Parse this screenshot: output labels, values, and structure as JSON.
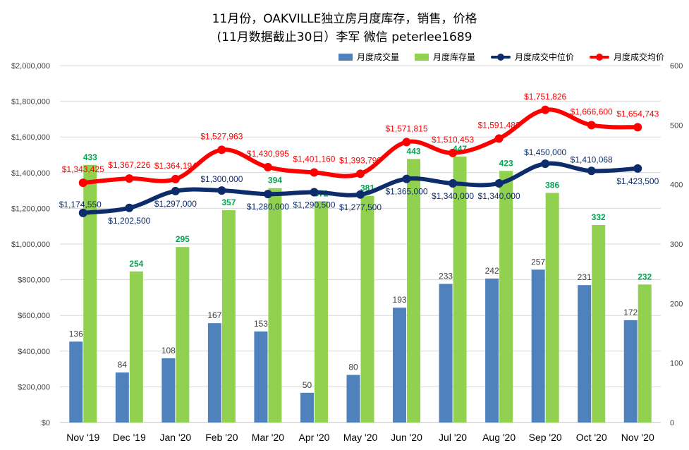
{
  "chart_data": {
    "type": "bar-line-combo",
    "title_line1": "11月份，OAKVILLE独立房月度库存，销售，价格",
    "title_line2": "(11月数据截止30日）李军 微信 peterlee1689",
    "categories": [
      "Nov '19",
      "Dec '19",
      "Jan '20",
      "Feb '20",
      "Mar '20",
      "Apr '20",
      "May '20",
      "Jun '20",
      "Jul '20",
      "Aug '20",
      "Sep '20",
      "Oct '20",
      "Nov '20"
    ],
    "left_axis": {
      "min": 0,
      "max": 2000000,
      "step": 200000,
      "tick_labels": [
        "$0",
        "$200,000",
        "$400,000",
        "$600,000",
        "$800,000",
        "$1,000,000",
        "$1,200,000",
        "$1,400,000",
        "$1,600,000",
        "$1,800,000",
        "$2,000,000"
      ]
    },
    "right_axis": {
      "min": 0,
      "max": 600,
      "step": 100,
      "tick_labels": [
        "0",
        "100",
        "200",
        "300",
        "400",
        "500",
        "600"
      ]
    },
    "grid": true,
    "legend_position": "top-right",
    "series": [
      {
        "name": "月度成交量",
        "kind": "bar",
        "axis": "right",
        "color": "#4f81bd",
        "values": [
          136,
          84,
          108,
          167,
          153,
          50,
          80,
          193,
          233,
          242,
          257,
          231,
          172
        ],
        "labels": [
          "136",
          "84",
          "108",
          "167",
          "153",
          "50",
          "80",
          "193",
          "233",
          "242",
          "257",
          "231",
          "172"
        ]
      },
      {
        "name": "月度库存量",
        "kind": "bar",
        "axis": "right",
        "color": "#92d050",
        "label_color": "#00a550",
        "values": [
          433,
          254,
          295,
          357,
          394,
          372,
          381,
          443,
          447,
          423,
          386,
          332,
          232
        ],
        "labels": [
          "433",
          "254",
          "295",
          "357",
          "394",
          "372",
          "381",
          "443",
          "447",
          "423",
          "386",
          "332",
          "232"
        ]
      },
      {
        "name": "月度成交中位价",
        "kind": "line",
        "axis": "left",
        "color": "#0d2c6c",
        "values": [
          1174550,
          1202500,
          1297000,
          1300000,
          1280000,
          1290500,
          1277500,
          1365000,
          1340000,
          1340000,
          1450000,
          1410068,
          1423500
        ],
        "labels": [
          "$1,174,550",
          "$1,202,500",
          "$1,297,000",
          "$1,300,000",
          "$1,280,000",
          "$1,290,500",
          "$1,277,500",
          "$1,365,000",
          "$1,340,000",
          "$1,340,000",
          "$1,450,000",
          "$1,410,068",
          "$1,423,500"
        ]
      },
      {
        "name": "月度成交均价",
        "kind": "line",
        "axis": "left",
        "color": "#ff0000",
        "values": [
          1343425,
          1367226,
          1364194,
          1527963,
          1430995,
          1401160,
          1393799,
          1571815,
          1510453,
          1591483,
          1751826,
          1666600,
          1654743
        ],
        "labels": [
          "$1,343,425",
          "$1,367,226",
          "$1,364,194",
          "$1,527,963",
          "$1,430,995",
          "$1,401,160",
          "$1,393,799",
          "$1,571,815",
          "$1,510,453",
          "$1,591,483",
          "$1,751,826",
          "$1,666,600",
          "$1,654,743"
        ]
      }
    ]
  }
}
